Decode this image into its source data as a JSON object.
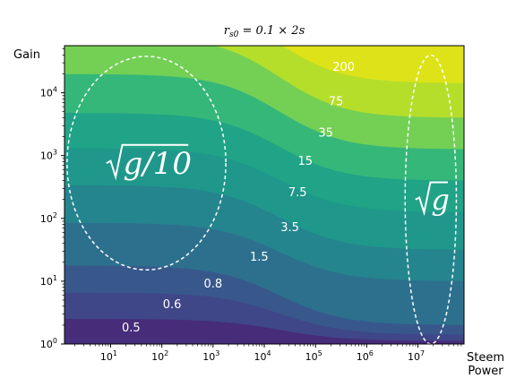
{
  "chart_data": {
    "type": "contour",
    "title": "r_{s0} = 0.1 × 2s",
    "title_parts": {
      "base": "r",
      "sub": "s0",
      "rest": " = 0.1 × 2s"
    },
    "xlabel": "Steem\nPower",
    "xlabel_lines": [
      "Steem",
      "Power"
    ],
    "ylabel": "Gain",
    "x_scale": "log",
    "y_scale": "log",
    "xlim_exp": [
      0.1,
      7.9
    ],
    "ylim_exp": [
      0,
      4.75
    ],
    "x_ticks": [
      {
        "exp": 1,
        "base": "10",
        "sup": "1"
      },
      {
        "exp": 2,
        "base": "10",
        "sup": "2"
      },
      {
        "exp": 3,
        "base": "10",
        "sup": "3"
      },
      {
        "exp": 4,
        "base": "10",
        "sup": "4"
      },
      {
        "exp": 5,
        "base": "10",
        "sup": "5"
      },
      {
        "exp": 6,
        "base": "10",
        "sup": "6"
      },
      {
        "exp": 7,
        "base": "10",
        "sup": "7"
      }
    ],
    "y_ticks": [
      {
        "exp": 0,
        "base": "10",
        "sup": "0"
      },
      {
        "exp": 1,
        "base": "10",
        "sup": "1"
      },
      {
        "exp": 2,
        "base": "10",
        "sup": "2"
      },
      {
        "exp": 3,
        "base": "10",
        "sup": "3"
      },
      {
        "exp": 4,
        "base": "10",
        "sup": "4"
      }
    ],
    "grid": false,
    "contour_levels": [
      {
        "label": "0.5",
        "value": 0.5,
        "color": "#472c7a",
        "y_left_exp": 0.4,
        "y_right_exp": 0.05,
        "label_at": [
          1.4,
          0.25
        ]
      },
      {
        "label": "0.6",
        "value": 0.6,
        "color": "#3f4788",
        "y_left_exp": 0.82,
        "y_right_exp": 0.15,
        "label_at": [
          2.2,
          0.62
        ]
      },
      {
        "label": "0.8",
        "value": 0.8,
        "color": "#38588c",
        "y_left_exp": 1.25,
        "y_right_exp": 0.3,
        "label_at": [
          3.0,
          0.95
        ]
      },
      {
        "label": "1.5",
        "value": 1.5,
        "color": "#2d708e",
        "y_left_exp": 1.93,
        "y_right_exp": 1.0,
        "label_at": [
          3.9,
          1.38
        ]
      },
      {
        "label": "3.5",
        "value": 3.5,
        "color": "#25858e",
        "y_left_exp": 2.53,
        "y_right_exp": 1.5,
        "label_at": [
          4.5,
          1.85
        ]
      },
      {
        "label": "7.5",
        "value": 7.5,
        "color": "#1f988b",
        "y_left_exp": 3.12,
        "y_right_exp": 2.1,
        "label_at": [
          4.65,
          2.4
        ]
      },
      {
        "label": "15",
        "value": 15,
        "color": "#20a386",
        "y_left_exp": 3.68,
        "y_right_exp": 2.6,
        "label_at": [
          4.8,
          2.9
        ]
      },
      {
        "label": "35",
        "value": 35,
        "color": "#35b779",
        "y_left_exp": 4.3,
        "y_right_exp": 3.1,
        "label_at": [
          5.2,
          3.35
        ]
      },
      {
        "label": "75",
        "value": 75,
        "color": "#73d055",
        "y_left_exp": 4.9,
        "y_right_exp": 3.6,
        "label_at": [
          5.4,
          3.85
        ]
      },
      {
        "label": "200",
        "value": 200,
        "color": "#b5de2b",
        "y_left_exp": 5.4,
        "y_right_exp": 4.15,
        "label_at": [
          5.55,
          4.4
        ]
      }
    ],
    "top_color": "#dde318",
    "bottom_color": "#46307e",
    "annotations": [
      {
        "text": "√(g/10)",
        "sqrt_arg": "g/10",
        "center_exp": [
          1.7,
          2.88
        ],
        "radius_exp": [
          1.55,
          1.7
        ],
        "style": "dashed-ellipse"
      },
      {
        "text": "√g",
        "sqrt_arg": "g",
        "center_exp": [
          7.25,
          2.3
        ],
        "radius_exp": [
          0.5,
          2.3
        ],
        "style": "dashed-ellipse"
      }
    ]
  }
}
